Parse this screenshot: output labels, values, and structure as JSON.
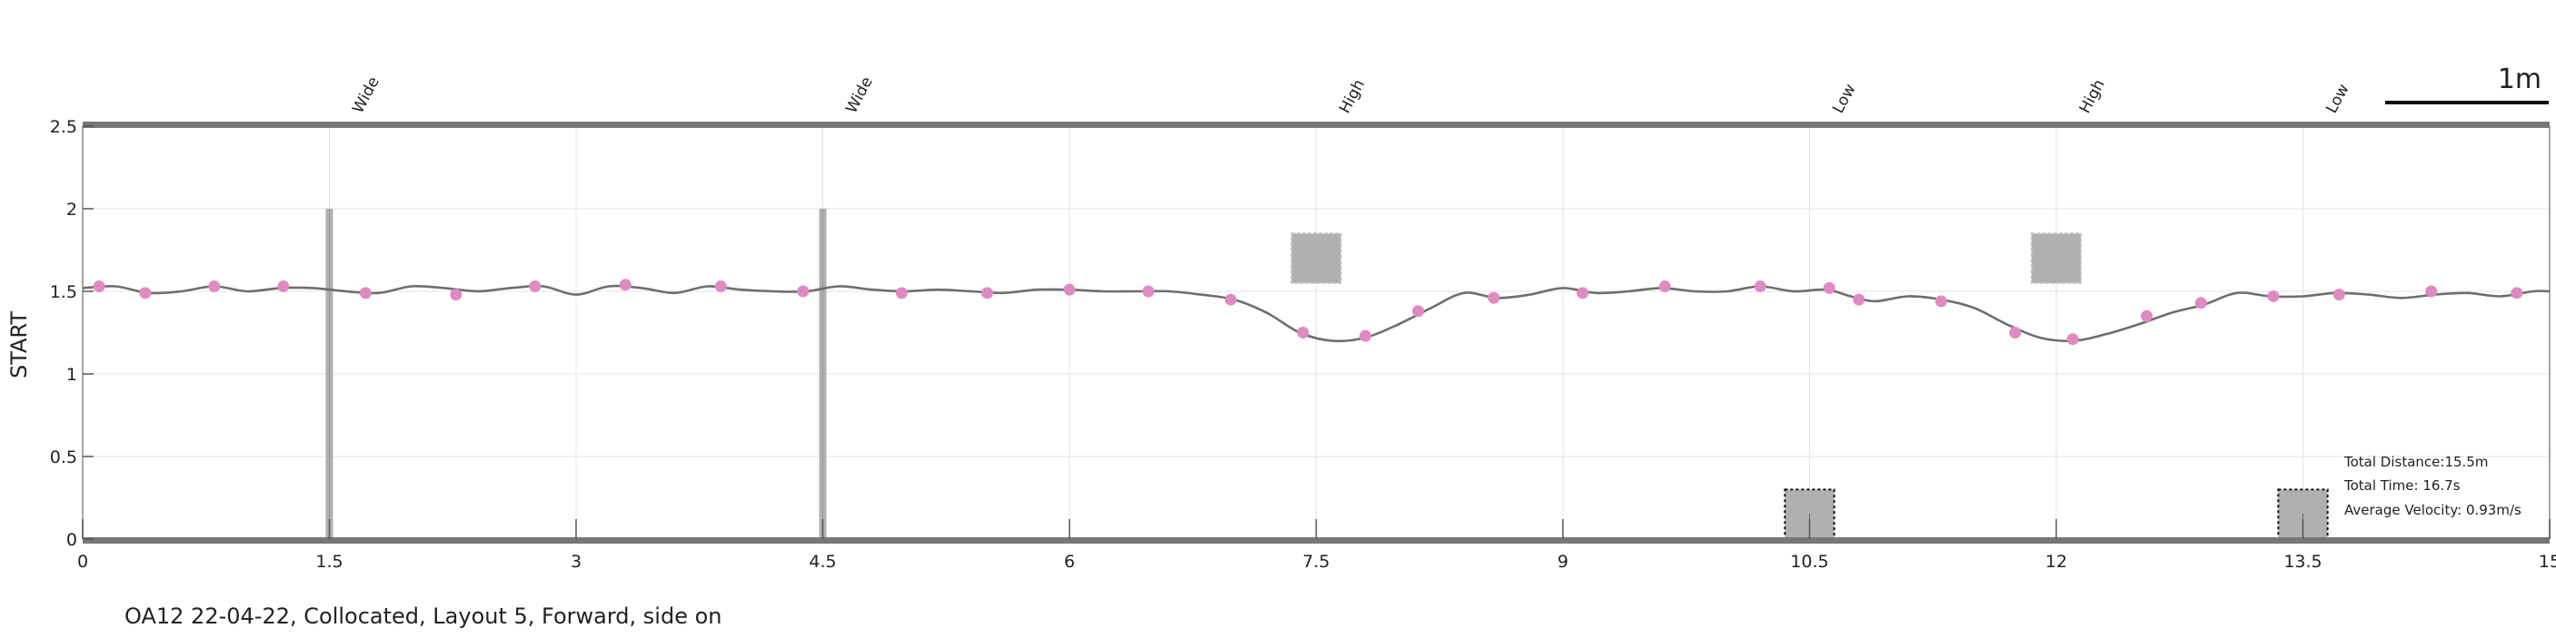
{
  "chart_data": {
    "type": "line",
    "title": "",
    "xlabel": "",
    "ylabel": "START",
    "xlim": [
      0,
      15
    ],
    "ylim": [
      0,
      2.5
    ],
    "grid": true,
    "x_ticks": [
      {
        "value": 0,
        "label": "0"
      },
      {
        "value": 1.5,
        "label": "1.5"
      },
      {
        "value": 3,
        "label": "3"
      },
      {
        "value": 4.5,
        "label": "4.5"
      },
      {
        "value": 6,
        "label": "6"
      },
      {
        "value": 7.5,
        "label": "7.5"
      },
      {
        "value": 9,
        "label": "9"
      },
      {
        "value": 10.5,
        "label": "10.5"
      },
      {
        "value": 12,
        "label": "12"
      },
      {
        "value": 13.5,
        "label": "13.5"
      },
      {
        "value": 15,
        "label": "15"
      }
    ],
    "y_ticks": [
      {
        "value": 0,
        "label": "0"
      },
      {
        "value": 0.5,
        "label": "0.5"
      },
      {
        "value": 1,
        "label": "1"
      },
      {
        "value": 1.5,
        "label": "1.5"
      },
      {
        "value": 2,
        "label": "2"
      },
      {
        "value": 2.5,
        "label": "2.5"
      }
    ],
    "obstacle_labels": [
      {
        "x": 1.5,
        "label": "Wide"
      },
      {
        "x": 4.5,
        "label": "Wide"
      },
      {
        "x": 7.5,
        "label": "High"
      },
      {
        "x": 10.5,
        "label": "Low"
      },
      {
        "x": 12,
        "label": "High"
      },
      {
        "x": 13.5,
        "label": "Low"
      }
    ],
    "obstacles": [
      {
        "type": "Wide",
        "x": 1.5,
        "y0": 0,
        "y1": 2
      },
      {
        "type": "Wide",
        "x": 4.5,
        "y0": 0,
        "y1": 2
      },
      {
        "type": "High",
        "x0": 7.35,
        "x1": 7.65,
        "y0": 1.55,
        "y1": 1.85
      },
      {
        "type": "Low",
        "x0": 10.35,
        "x1": 10.65,
        "y0": 0,
        "y1": 0.3
      },
      {
        "type": "High",
        "x0": 11.85,
        "x1": 12.15,
        "y0": 1.55,
        "y1": 1.85
      },
      {
        "type": "Low",
        "x0": 13.35,
        "x1": 13.65,
        "y0": 0,
        "y1": 0.3
      }
    ],
    "series": [
      {
        "path": [
          [
            0.0,
            1.52
          ],
          [
            0.2,
            1.53
          ],
          [
            0.4,
            1.49
          ],
          [
            0.6,
            1.5
          ],
          [
            0.8,
            1.53
          ],
          [
            1.0,
            1.5
          ],
          [
            1.2,
            1.52
          ],
          [
            1.4,
            1.52
          ],
          [
            1.6,
            1.5
          ],
          [
            1.8,
            1.49
          ],
          [
            2.0,
            1.53
          ],
          [
            2.2,
            1.52
          ],
          [
            2.4,
            1.5
          ],
          [
            2.6,
            1.52
          ],
          [
            2.8,
            1.53
          ],
          [
            3.0,
            1.48
          ],
          [
            3.2,
            1.53
          ],
          [
            3.4,
            1.52
          ],
          [
            3.6,
            1.49
          ],
          [
            3.8,
            1.53
          ],
          [
            4.0,
            1.51
          ],
          [
            4.2,
            1.5
          ],
          [
            4.4,
            1.5
          ],
          [
            4.6,
            1.53
          ],
          [
            4.8,
            1.51
          ],
          [
            5.0,
            1.5
          ],
          [
            5.2,
            1.51
          ],
          [
            5.4,
            1.5
          ],
          [
            5.6,
            1.49
          ],
          [
            5.8,
            1.51
          ],
          [
            6.0,
            1.51
          ],
          [
            6.2,
            1.5
          ],
          [
            6.4,
            1.5
          ],
          [
            6.6,
            1.5
          ],
          [
            6.8,
            1.48
          ],
          [
            7.0,
            1.45
          ],
          [
            7.2,
            1.37
          ],
          [
            7.4,
            1.25
          ],
          [
            7.6,
            1.2
          ],
          [
            7.8,
            1.22
          ],
          [
            8.0,
            1.3
          ],
          [
            8.2,
            1.4
          ],
          [
            8.4,
            1.49
          ],
          [
            8.6,
            1.46
          ],
          [
            8.8,
            1.48
          ],
          [
            9.0,
            1.52
          ],
          [
            9.2,
            1.49
          ],
          [
            9.4,
            1.5
          ],
          [
            9.6,
            1.52
          ],
          [
            9.8,
            1.5
          ],
          [
            10.0,
            1.5
          ],
          [
            10.2,
            1.53
          ],
          [
            10.4,
            1.5
          ],
          [
            10.6,
            1.51
          ],
          [
            10.75,
            1.47
          ],
          [
            10.9,
            1.44
          ],
          [
            11.1,
            1.47
          ],
          [
            11.3,
            1.45
          ],
          [
            11.5,
            1.4
          ],
          [
            11.7,
            1.3
          ],
          [
            11.9,
            1.22
          ],
          [
            12.1,
            1.2
          ],
          [
            12.3,
            1.24
          ],
          [
            12.5,
            1.3
          ],
          [
            12.7,
            1.37
          ],
          [
            12.9,
            1.42
          ],
          [
            13.1,
            1.49
          ],
          [
            13.3,
            1.47
          ],
          [
            13.5,
            1.47
          ],
          [
            13.7,
            1.49
          ],
          [
            13.9,
            1.48
          ],
          [
            14.1,
            1.46
          ],
          [
            14.3,
            1.48
          ],
          [
            14.5,
            1.49
          ],
          [
            14.7,
            1.47
          ],
          [
            14.9,
            1.5
          ],
          [
            15.0,
            1.5
          ]
        ],
        "points": [
          [
            0.1,
            1.53
          ],
          [
            0.38,
            1.49
          ],
          [
            0.8,
            1.53
          ],
          [
            1.22,
            1.53
          ],
          [
            1.72,
            1.49
          ],
          [
            2.27,
            1.48
          ],
          [
            2.75,
            1.53
          ],
          [
            3.3,
            1.54
          ],
          [
            3.88,
            1.53
          ],
          [
            4.38,
            1.5
          ],
          [
            4.98,
            1.49
          ],
          [
            5.5,
            1.49
          ],
          [
            6.0,
            1.51
          ],
          [
            6.48,
            1.5
          ],
          [
            6.98,
            1.45
          ],
          [
            7.42,
            1.25
          ],
          [
            7.8,
            1.23
          ],
          [
            8.12,
            1.38
          ],
          [
            8.58,
            1.46
          ],
          [
            9.12,
            1.49
          ],
          [
            9.62,
            1.53
          ],
          [
            10.2,
            1.53
          ],
          [
            10.62,
            1.52
          ],
          [
            10.8,
            1.45
          ],
          [
            11.3,
            1.44
          ],
          [
            11.75,
            1.25
          ],
          [
            12.1,
            1.21
          ],
          [
            12.55,
            1.35
          ],
          [
            12.88,
            1.43
          ],
          [
            13.32,
            1.47
          ],
          [
            13.72,
            1.48
          ],
          [
            14.28,
            1.5
          ],
          [
            14.8,
            1.49
          ]
        ]
      }
    ],
    "colors": {
      "line": "#6e6e6e",
      "points": "#e08ac2",
      "obstacle": "#b0b0b0",
      "axis": "#777777",
      "grid": "#e3e3e3"
    }
  },
  "scale_bar": {
    "label": "1m",
    "length": 1
  },
  "stats": {
    "distance": "Total Distance:15.5m",
    "time": "Total Time: 16.7s",
    "velocity": "Average Velocity: 0.93m/s"
  },
  "caption": "OA12 22-04-22, Collocated, Layout 5, Forward, side on"
}
